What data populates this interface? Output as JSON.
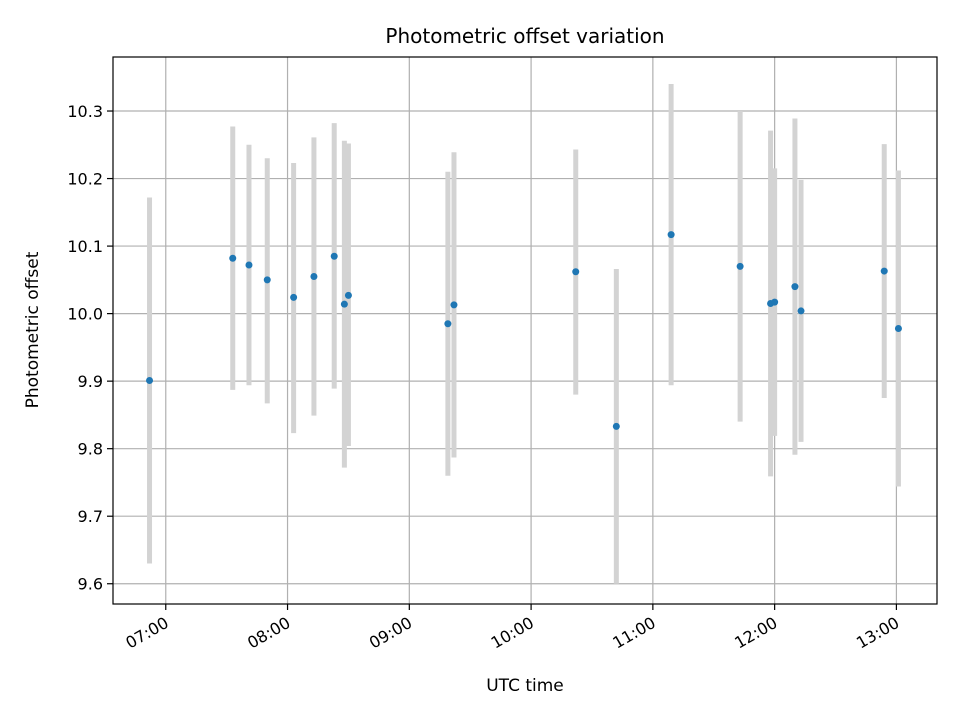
{
  "chart_data": {
    "type": "scatter",
    "title": "Photometric offset variation",
    "xlabel": "UTC time",
    "ylabel": "Photometric offset",
    "x_ticks": [
      "07:00",
      "08:00",
      "09:00",
      "10:00",
      "11:00",
      "12:00",
      "13:00"
    ],
    "y_ticks": [
      "9.6",
      "9.7",
      "9.8",
      "9.9",
      "10.0",
      "10.1",
      "10.2",
      "10.3"
    ],
    "xlim": [
      "06:34",
      "13:20"
    ],
    "ylim": [
      9.57,
      10.38
    ],
    "grid": true,
    "colors": {
      "marker": "#1f77b4",
      "errorbar": "#d3d3d3",
      "grid": "#b0b0b0"
    },
    "points": [
      {
        "t": "06:52",
        "y": 9.901,
        "low": 9.63,
        "high": 10.172
      },
      {
        "t": "07:33",
        "y": 10.082,
        "low": 9.887,
        "high": 10.277
      },
      {
        "t": "07:41",
        "y": 10.072,
        "low": 9.894,
        "high": 10.25
      },
      {
        "t": "07:50",
        "y": 10.05,
        "low": 9.867,
        "high": 10.23
      },
      {
        "t": "08:03",
        "y": 10.024,
        "low": 9.823,
        "high": 10.223
      },
      {
        "t": "08:13",
        "y": 10.055,
        "low": 9.849,
        "high": 10.261
      },
      {
        "t": "08:23",
        "y": 10.085,
        "low": 9.889,
        "high": 10.282
      },
      {
        "t": "08:28",
        "y": 10.014,
        "low": 9.772,
        "high": 10.256
      },
      {
        "t": "08:30",
        "y": 10.027,
        "low": 9.804,
        "high": 10.252
      },
      {
        "t": "09:19",
        "y": 9.985,
        "low": 9.76,
        "high": 10.21
      },
      {
        "t": "09:22",
        "y": 10.013,
        "low": 9.787,
        "high": 10.239
      },
      {
        "t": "10:22",
        "y": 10.062,
        "low": 9.88,
        "high": 10.243
      },
      {
        "t": "10:42",
        "y": 9.833,
        "low": 9.6,
        "high": 10.066
      },
      {
        "t": "11:09",
        "y": 10.117,
        "low": 9.894,
        "high": 10.34
      },
      {
        "t": "11:43",
        "y": 10.07,
        "low": 9.84,
        "high": 10.3
      },
      {
        "t": "11:58",
        "y": 10.015,
        "low": 9.759,
        "high": 10.271
      },
      {
        "t": "12:00",
        "y": 10.017,
        "low": 9.819,
        "high": 10.215
      },
      {
        "t": "12:10",
        "y": 10.04,
        "low": 9.791,
        "high": 10.289
      },
      {
        "t": "12:13",
        "y": 10.004,
        "low": 9.81,
        "high": 10.198
      },
      {
        "t": "12:54",
        "y": 10.063,
        "low": 9.875,
        "high": 10.251
      },
      {
        "t": "13:01",
        "y": 9.978,
        "low": 9.744,
        "high": 10.212
      }
    ]
  }
}
